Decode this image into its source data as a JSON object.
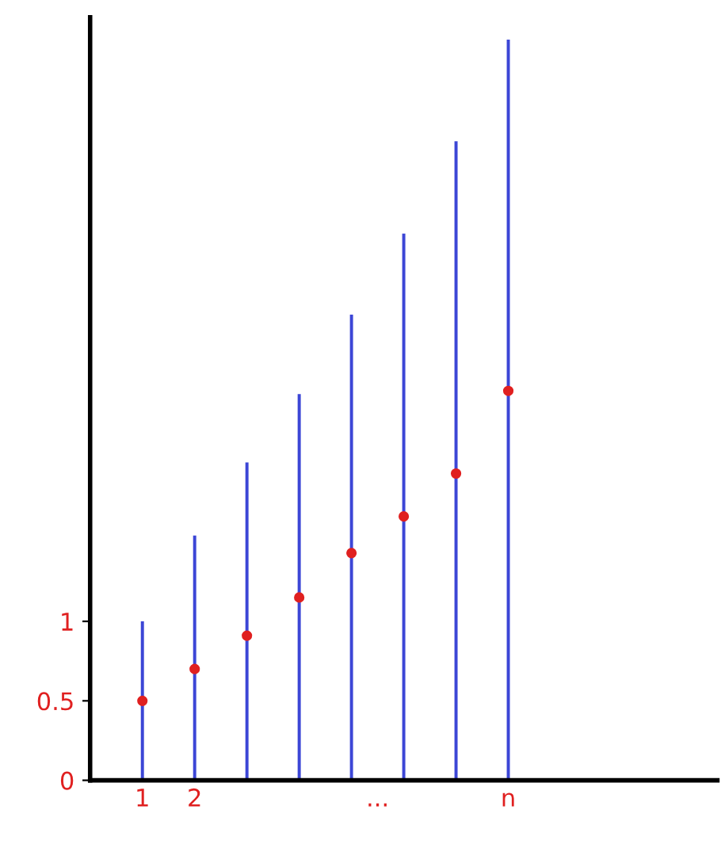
{
  "chart_data": {
    "type": "bar",
    "x": [
      1,
      2,
      3,
      4,
      5,
      6,
      7,
      8
    ],
    "series": [
      {
        "color": "#3c46d6",
        "values": [
          1.0,
          1.54,
          2.0,
          2.43,
          2.93,
          3.44,
          4.02,
          4.66
        ]
      },
      {
        "type": "scatter",
        "color": "#e02020",
        "values": [
          0.5,
          0.7,
          0.91,
          1.15,
          1.43,
          1.66,
          1.93,
          2.45
        ]
      }
    ],
    "xlim": [
      0,
      12
    ],
    "xticks": [
      1,
      2,
      {
        "value": 5.5,
        "label": "..."
      },
      {
        "value": 8,
        "label": "n"
      }
    ],
    "ylim": [
      0,
      4.8
    ],
    "yticks": [
      0,
      0.5,
      1
    ],
    "marker": "circle",
    "grid": false,
    "legend": false
  }
}
